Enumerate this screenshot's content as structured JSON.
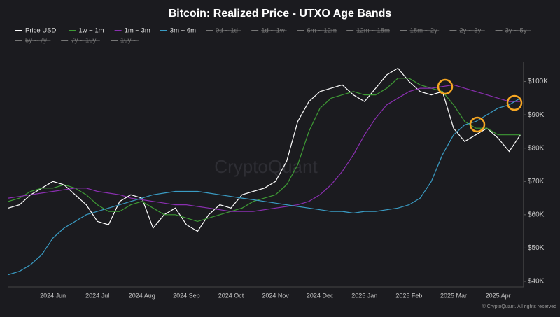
{
  "chart_data": {
    "type": "line",
    "title": "Bitcoin: Realized Price - UTXO Age Bands",
    "watermark": "CryptoQuant",
    "footer": "© CryptoQuant. All rights reserved",
    "categories": [
      null,
      null,
      null,
      null,
      "2024 Jun",
      null,
      null,
      null,
      "2024 Jul",
      null,
      null,
      null,
      "2024 Aug",
      null,
      null,
      null,
      "2024 Sep",
      null,
      null,
      null,
      "2024 Oct",
      null,
      null,
      null,
      "2024 Nov",
      null,
      null,
      null,
      "2024 Dec",
      null,
      null,
      null,
      "2025 Jan",
      null,
      null,
      null,
      "2025 Feb",
      null,
      null,
      null,
      "2025 Mar",
      null,
      null,
      null,
      "2025 Apr",
      null,
      null
    ],
    "series": [
      {
        "name": "Price USD",
        "color": "#ffffff",
        "values": [
          62000,
          63000,
          66000,
          68000,
          70000,
          69000,
          66000,
          63000,
          58000,
          57000,
          64000,
          66000,
          65000,
          56000,
          60000,
          62000,
          57000,
          55000,
          60000,
          63000,
          62000,
          66000,
          67000,
          68000,
          70000,
          76000,
          88000,
          94000,
          97000,
          98000,
          99000,
          96000,
          94000,
          98000,
          102000,
          104000,
          100000,
          97000,
          96000,
          97000,
          86000,
          82000,
          84000,
          86000,
          83000,
          79000,
          84000
        ]
      },
      {
        "name": "1w ~ 1m",
        "color": "#3e9a35",
        "values": [
          64000,
          65000,
          67000,
          68000,
          68000,
          69000,
          68000,
          66000,
          63000,
          61000,
          61000,
          63000,
          64000,
          62000,
          60000,
          60000,
          59000,
          58000,
          59000,
          60000,
          61000,
          62000,
          64000,
          65000,
          66000,
          69000,
          75000,
          85000,
          92000,
          95000,
          96000,
          97000,
          96000,
          96000,
          98000,
          101000,
          101000,
          99000,
          98000,
          97000,
          93000,
          88000,
          86000,
          86000,
          84000,
          84000,
          84000
        ]
      },
      {
        "name": "1m ~ 3m",
        "color": "#8a2fb0",
        "values": [
          65000,
          65500,
          66000,
          66500,
          67000,
          67500,
          68000,
          68000,
          67000,
          66500,
          66000,
          65000,
          64500,
          64000,
          63500,
          63000,
          63000,
          62500,
          62000,
          61500,
          61000,
          61000,
          61000,
          61500,
          62000,
          62500,
          63000,
          64000,
          66000,
          69000,
          73000,
          78000,
          84000,
          89000,
          93000,
          95000,
          97000,
          98000,
          98000,
          98500,
          99000,
          98000,
          97000,
          96000,
          95000,
          94000,
          94000
        ]
      },
      {
        "name": "3m ~ 6m",
        "color": "#3a9cc4",
        "values": [
          42000,
          43000,
          45000,
          48000,
          53000,
          56000,
          58000,
          60000,
          61000,
          62000,
          63000,
          64000,
          65000,
          66000,
          66500,
          67000,
          67000,
          67000,
          66500,
          66000,
          65500,
          65000,
          64500,
          64000,
          63500,
          63000,
          62500,
          62000,
          61500,
          61000,
          61000,
          60500,
          61000,
          61000,
          61500,
          62000,
          63000,
          65000,
          70000,
          78000,
          84000,
          87000,
          88000,
          90000,
          92000,
          93000,
          95000
        ]
      }
    ],
    "hidden_series": [
      "0d ~ 1d",
      "1d ~ 1w",
      "6m ~ 12m",
      "12m ~ 18m",
      "18m ~ 2y",
      "2y ~ 3y",
      "3y ~ 5y",
      "5y ~ 7y",
      "7y ~ 10y",
      "10y ~"
    ],
    "ylim": [
      40000,
      106000
    ],
    "yticks": [
      {
        "value": 40000,
        "label": "$40K"
      },
      {
        "value": 50000,
        "label": "$50K"
      },
      {
        "value": 60000,
        "label": "$60K"
      },
      {
        "value": 70000,
        "label": "$70K"
      },
      {
        "value": 80000,
        "label": "$80K"
      },
      {
        "value": 90000,
        "label": "$90K"
      },
      {
        "value": 100000,
        "label": "$100K"
      }
    ],
    "grid": false,
    "y_axis_side": "right"
  }
}
